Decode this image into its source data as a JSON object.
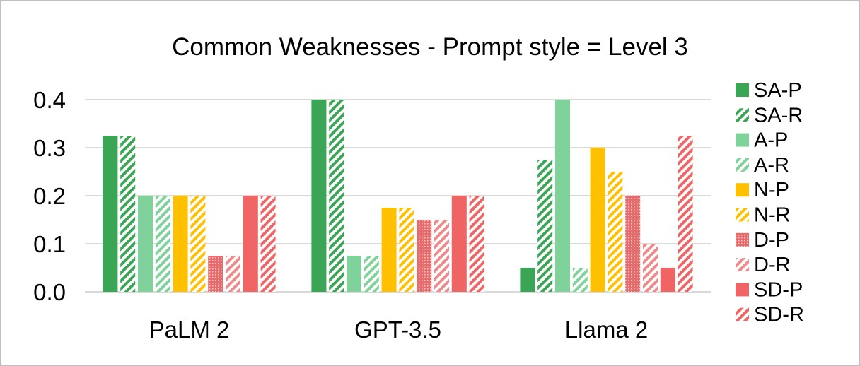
{
  "chart_data": {
    "type": "bar",
    "title": "Common Weaknesses - Prompt style = Level 3",
    "xlabel": "",
    "ylabel": "",
    "ylim": [
      0,
      0.4
    ],
    "yticks": [
      "0.0",
      "0.1",
      "0.2",
      "0.3",
      "0.4"
    ],
    "grid": true,
    "legend_position": "right",
    "categories": [
      "PaLM 2",
      "GPT-3.5",
      "Llama 2"
    ],
    "series": [
      {
        "name": "SA-P",
        "color": "#3aa655",
        "pattern": "solid",
        "values": [
          0.325,
          0.4,
          0.05
        ]
      },
      {
        "name": "SA-R",
        "color": "#3aa655",
        "pattern": "hatch",
        "values": [
          0.325,
          0.4,
          0.275
        ]
      },
      {
        "name": "A-P",
        "color": "#7fd29a",
        "pattern": "solid",
        "values": [
          0.2,
          0.075,
          0.4
        ]
      },
      {
        "name": "A-R",
        "color": "#7fd29a",
        "pattern": "hatch",
        "values": [
          0.2,
          0.075,
          0.05
        ]
      },
      {
        "name": "N-P",
        "color": "#ffc000",
        "pattern": "solid",
        "values": [
          0.2,
          0.175,
          0.3
        ]
      },
      {
        "name": "N-R",
        "color": "#ffc000",
        "pattern": "hatch",
        "values": [
          0.2,
          0.175,
          0.25
        ]
      },
      {
        "name": "D-P",
        "color": "#e46c6c",
        "pattern": "dots",
        "values": [
          0.075,
          0.15,
          0.2
        ]
      },
      {
        "name": "D-R",
        "color": "#ee8a8a",
        "pattern": "hatch",
        "values": [
          0.075,
          0.15,
          0.1
        ]
      },
      {
        "name": "SD-P",
        "color": "#f06464",
        "pattern": "solid",
        "values": [
          0.2,
          0.2,
          0.05
        ]
      },
      {
        "name": "SD-R",
        "color": "#f06464",
        "pattern": "hatch",
        "values": [
          0.2,
          0.2,
          0.325
        ]
      }
    ]
  }
}
